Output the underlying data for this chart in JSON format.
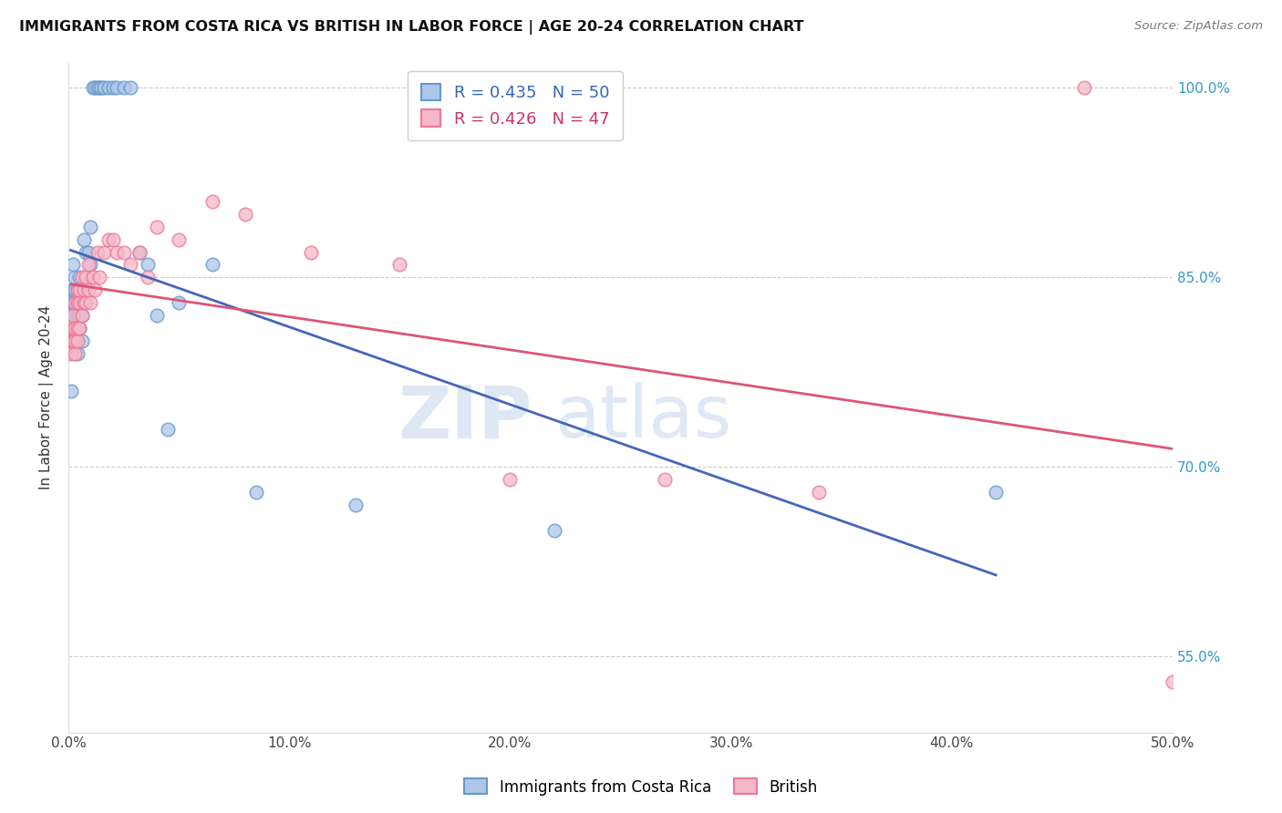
{
  "title": "IMMIGRANTS FROM COSTA RICA VS BRITISH IN LABOR FORCE | AGE 20-24 CORRELATION CHART",
  "source": "Source: ZipAtlas.com",
  "ylabel": "In Labor Force | Age 20-24",
  "xlim": [
    0.0,
    0.5
  ],
  "ylim": [
    0.49,
    1.02
  ],
  "xtick_vals": [
    0.0,
    0.1,
    0.2,
    0.3,
    0.4,
    0.5
  ],
  "xtick_labels": [
    "0.0%",
    "10.0%",
    "20.0%",
    "30.0%",
    "40.0%",
    "50.0%"
  ],
  "ytick_vals": [
    0.55,
    0.7,
    0.85,
    1.0
  ],
  "ytick_labels": [
    "55.0%",
    "70.0%",
    "85.0%",
    "100.0%"
  ],
  "background_color": "#ffffff",
  "costa_rica_color": "#6699cc",
  "british_color": "#ee7799",
  "costa_rica_line_color": "#4466bb",
  "british_line_color": "#dd5577",
  "costa_rica_R": 0.435,
  "costa_rica_N": 50,
  "british_R": 0.426,
  "british_N": 47,
  "costa_rica_x": [
    0.001,
    0.001,
    0.001,
    0.002,
    0.002,
    0.002,
    0.002,
    0.002,
    0.003,
    0.003,
    0.003,
    0.003,
    0.003,
    0.003,
    0.004,
    0.004,
    0.004,
    0.004,
    0.005,
    0.005,
    0.005,
    0.006,
    0.006,
    0.007,
    0.007,
    0.008,
    0.009,
    0.01,
    0.01,
    0.011,
    0.012,
    0.013,
    0.014,
    0.015,
    0.016,
    0.018,
    0.02,
    0.022,
    0.025,
    0.028,
    0.032,
    0.036,
    0.04,
    0.045,
    0.05,
    0.065,
    0.085,
    0.13,
    0.22,
    0.42
  ],
  "costa_rica_y": [
    0.76,
    0.8,
    0.83,
    0.8,
    0.82,
    0.83,
    0.84,
    0.86,
    0.8,
    0.81,
    0.82,
    0.83,
    0.84,
    0.85,
    0.79,
    0.82,
    0.83,
    0.84,
    0.81,
    0.82,
    0.85,
    0.8,
    0.82,
    0.83,
    0.88,
    0.87,
    0.87,
    0.86,
    0.89,
    1.0,
    1.0,
    1.0,
    1.0,
    1.0,
    1.0,
    1.0,
    1.0,
    1.0,
    1.0,
    1.0,
    0.87,
    0.86,
    0.82,
    0.73,
    0.83,
    0.86,
    0.68,
    0.67,
    0.65,
    0.68
  ],
  "british_x": [
    0.001,
    0.002,
    0.002,
    0.002,
    0.003,
    0.003,
    0.003,
    0.003,
    0.004,
    0.004,
    0.004,
    0.004,
    0.005,
    0.005,
    0.005,
    0.006,
    0.006,
    0.007,
    0.007,
    0.008,
    0.008,
    0.009,
    0.009,
    0.01,
    0.011,
    0.012,
    0.013,
    0.014,
    0.016,
    0.018,
    0.02,
    0.022,
    0.025,
    0.028,
    0.032,
    0.036,
    0.04,
    0.05,
    0.065,
    0.08,
    0.11,
    0.15,
    0.2,
    0.27,
    0.34,
    0.46,
    0.5
  ],
  "british_y": [
    0.79,
    0.8,
    0.81,
    0.82,
    0.79,
    0.8,
    0.81,
    0.83,
    0.8,
    0.81,
    0.83,
    0.84,
    0.81,
    0.83,
    0.84,
    0.82,
    0.85,
    0.83,
    0.84,
    0.83,
    0.85,
    0.84,
    0.86,
    0.83,
    0.85,
    0.84,
    0.87,
    0.85,
    0.87,
    0.88,
    0.88,
    0.87,
    0.87,
    0.86,
    0.87,
    0.85,
    0.89,
    0.88,
    0.91,
    0.9,
    0.87,
    0.86,
    0.69,
    0.69,
    0.68,
    1.0,
    0.53
  ],
  "watermark_zip": "ZIP",
  "watermark_atlas": "atlas"
}
